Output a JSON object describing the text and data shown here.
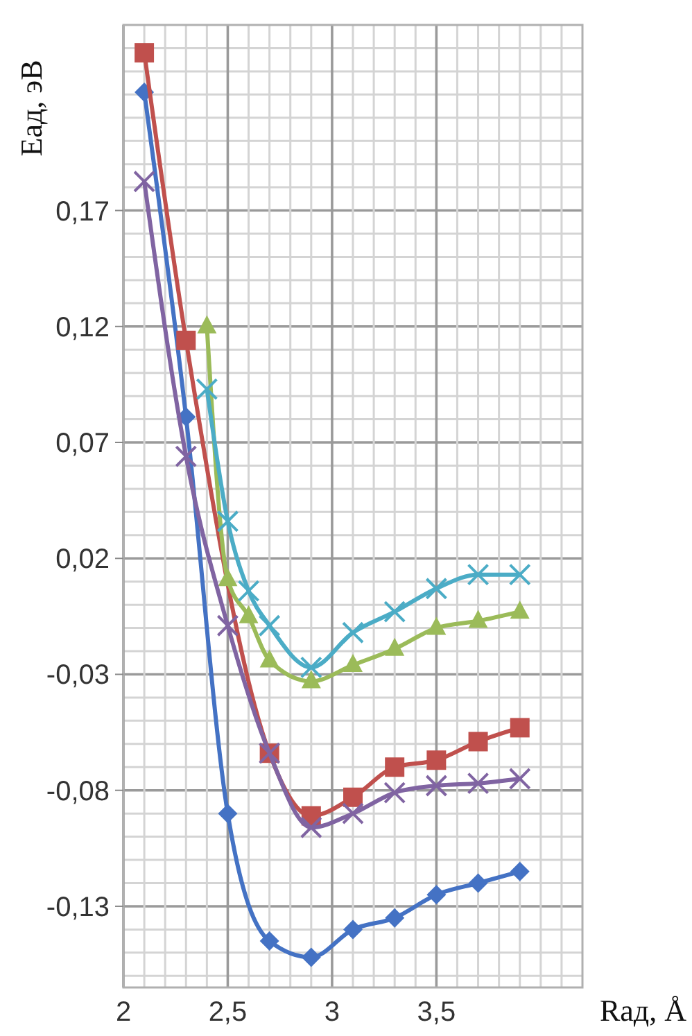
{
  "chart_data": {
    "type": "line",
    "xlabel": "Rад, Å",
    "ylabel": "Eад, эВ",
    "grid": true,
    "xlim": [
      2,
      4.2
    ],
    "ylim": [
      -0.165,
      0.25
    ],
    "xticks": [
      2,
      {
        "value": 2.1,
        "label": null
      },
      {
        "value": 2.2,
        "label": null
      },
      {
        "value": 2.3,
        "label": null
      },
      {
        "value": 2.4,
        "label": null
      },
      {
        "value": 2.5,
        "label": "2,5"
      },
      {
        "value": 2.6,
        "label": null
      },
      {
        "value": 2.7,
        "label": null
      },
      {
        "value": 2.8,
        "label": null
      },
      {
        "value": 2.9,
        "label": null
      },
      3,
      {
        "value": 3.1,
        "label": null
      },
      {
        "value": 3.2,
        "label": null
      },
      {
        "value": 3.3,
        "label": null
      },
      {
        "value": 3.4,
        "label": null
      },
      {
        "value": 3.5,
        "label": "3,5"
      },
      {
        "value": 3.6,
        "label": null
      },
      {
        "value": 3.7,
        "label": null
      },
      {
        "value": 3.8,
        "label": null
      },
      {
        "value": 3.9,
        "label": null
      },
      {
        "value": 4,
        "label": null
      },
      {
        "value": 4.1,
        "label": null
      }
    ],
    "yticks": [
      {
        "value": -0.16,
        "label": null
      },
      {
        "value": -0.15,
        "label": null
      },
      {
        "value": -0.14,
        "label": null
      },
      {
        "value": -0.13,
        "label": "-0,13"
      },
      {
        "value": -0.12,
        "label": null
      },
      {
        "value": -0.11,
        "label": null
      },
      {
        "value": -0.1,
        "label": null
      },
      {
        "value": -0.09,
        "label": null
      },
      {
        "value": -0.08,
        "label": "-0,08"
      },
      {
        "value": -0.07,
        "label": null
      },
      {
        "value": -0.06,
        "label": null
      },
      {
        "value": -0.05,
        "label": null
      },
      {
        "value": -0.04,
        "label": null
      },
      {
        "value": -0.03,
        "label": "-0,03"
      },
      {
        "value": -0.02,
        "label": null
      },
      {
        "value": -0.01,
        "label": null
      },
      {
        "value": 0,
        "label": null
      },
      {
        "value": 0.01,
        "label": null
      },
      {
        "value": 0.02,
        "label": "0,02"
      },
      {
        "value": 0.03,
        "label": null
      },
      {
        "value": 0.04,
        "label": null
      },
      {
        "value": 0.05,
        "label": null
      },
      {
        "value": 0.06,
        "label": null
      },
      {
        "value": 0.07,
        "label": "0,07"
      },
      {
        "value": 0.08,
        "label": null
      },
      {
        "value": 0.09,
        "label": null
      },
      {
        "value": 0.1,
        "label": null
      },
      {
        "value": 0.11,
        "label": null
      },
      {
        "value": 0.12,
        "label": "0,12"
      },
      {
        "value": 0.13,
        "label": null
      },
      {
        "value": 0.14,
        "label": null
      },
      {
        "value": 0.15,
        "label": null
      },
      {
        "value": 0.16,
        "label": null
      },
      {
        "value": 0.17,
        "label": "0,17"
      },
      {
        "value": 0.18,
        "label": null
      },
      {
        "value": 0.19,
        "label": null
      },
      {
        "value": 0.2,
        "label": null
      },
      {
        "value": 0.21,
        "label": null
      },
      {
        "value": 0.22,
        "label": null
      },
      {
        "value": 0.23,
        "label": null
      },
      {
        "value": 0.24,
        "label": null
      }
    ],
    "series": [
      {
        "color": "#4472c4",
        "marker": "diamond",
        "x": [
          2.1,
          2.3,
          2.5,
          2.7,
          2.9,
          3.1,
          3.3,
          3.5,
          3.7,
          3.9
        ],
        "values": [
          0.221,
          0.081,
          -0.09,
          -0.145,
          -0.152,
          -0.14,
          -0.135,
          -0.125,
          -0.12,
          -0.115
        ]
      },
      {
        "color": "#c0504d",
        "marker": "square",
        "x": [
          2.1,
          2.3,
          2.5,
          2.7,
          2.9,
          3.1,
          3.3,
          3.5,
          3.7,
          3.9
        ],
        "values": [
          0.238,
          0.114,
          null,
          -0.064,
          -0.091,
          -0.083,
          -0.07,
          -0.067,
          -0.059,
          -0.053
        ]
      },
      {
        "color": "#9bbb59",
        "marker": "triangle",
        "x": [
          2.4,
          2.5,
          2.6,
          2.7,
          2.9,
          3.1,
          3.3,
          3.5,
          3.7,
          3.9
        ],
        "values": [
          0.12,
          0.011,
          -0.005,
          -0.024,
          -0.033,
          -0.026,
          -0.019,
          -0.01,
          -0.007,
          -0.003
        ]
      },
      {
        "color": "#4bacc6",
        "marker": "cross",
        "x": [
          2.4,
          2.5,
          2.6,
          2.7,
          2.9,
          3.1,
          3.3,
          3.5,
          3.7,
          3.9
        ],
        "values": [
          0.093,
          0.036,
          0.006,
          -0.009,
          -0.027,
          -0.012,
          -0.003,
          0.007,
          0.013,
          0.013
        ]
      },
      {
        "color": "#8064a2",
        "marker": "cross",
        "x": [
          2.1,
          2.3,
          2.5,
          2.7,
          2.9,
          3.1,
          3.3,
          3.5,
          3.7,
          3.9
        ],
        "values": [
          0.1825,
          0.064,
          -0.009,
          -0.064,
          -0.096,
          -0.09,
          -0.081,
          -0.078,
          -0.077,
          -0.075
        ]
      }
    ]
  }
}
